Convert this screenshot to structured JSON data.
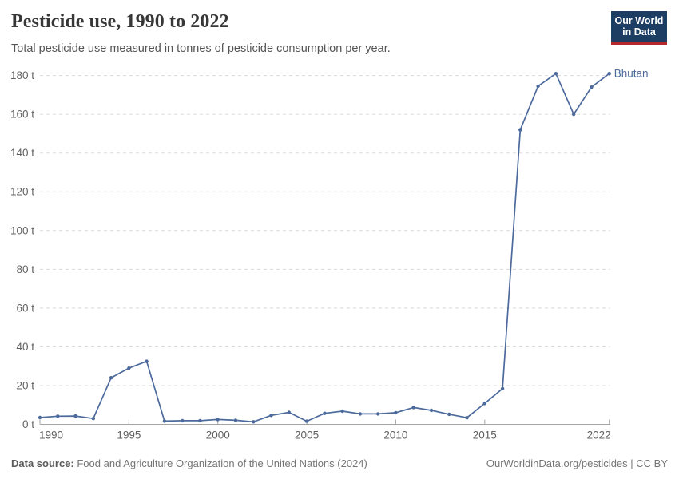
{
  "header": {
    "title": "Pesticide use, 1990 to 2022",
    "subtitle": "Total pesticide use measured in tonnes of pesticide consumption per year."
  },
  "logo": {
    "line1": "Our World",
    "line2": "in Data",
    "bg_color": "#1d3d63",
    "accent_color": "#b4282d"
  },
  "chart_data": {
    "type": "line",
    "title": "Pesticide use, 1990 to 2022",
    "ylabel": "tonnes of pesticide consumption",
    "xlabel": "",
    "grid": "horizontal-dashed",
    "legend_position": "end-of-line-label",
    "xlim": [
      1990,
      2022
    ],
    "ylim": [
      0,
      180
    ],
    "x_ticks": [
      1990,
      1995,
      2000,
      2005,
      2010,
      2015,
      2022
    ],
    "x_tick_labels": [
      "1990",
      "1995",
      "2000",
      "2005",
      "2010",
      "2015",
      "2022"
    ],
    "y_ticks": [
      0,
      20,
      40,
      60,
      80,
      100,
      120,
      140,
      160,
      180
    ],
    "y_tick_labels": [
      "0 t",
      "20 t",
      "40 t",
      "60 t",
      "80 t",
      "100 t",
      "120 t",
      "140 t",
      "160 t",
      "180 t"
    ],
    "series": [
      {
        "name": "Bhutan",
        "color": "#4c6a9c",
        "x": [
          1990,
          1991,
          1992,
          1993,
          1994,
          1995,
          1996,
          1997,
          1998,
          1999,
          2000,
          2001,
          2002,
          2003,
          2004,
          2005,
          2006,
          2007,
          2008,
          2009,
          2010,
          2011,
          2012,
          2013,
          2014,
          2015,
          2016,
          2017,
          2018,
          2019,
          2020,
          2021,
          2022
        ],
        "values": [
          3.5,
          4.2,
          4.3,
          3.0,
          24.0,
          29.0,
          32.5,
          1.7,
          1.9,
          1.9,
          2.5,
          2.1,
          1.3,
          4.6,
          6.2,
          1.6,
          5.7,
          6.8,
          5.4,
          5.4,
          6.0,
          8.7,
          7.2,
          5.2,
          3.4,
          10.8,
          18.4,
          152.0,
          174.5,
          181.0,
          160.0,
          174.0,
          181.0
        ]
      }
    ]
  },
  "footer": {
    "source_label": "Data source:",
    "source_text": " Food and Agriculture Organization of the United Nations (2024)",
    "link_text": "OurWorldinData.org/pesticides | CC BY"
  },
  "colors": {
    "line": "#4c6a9c",
    "grid": "#dadada",
    "axis": "#a5a5a5",
    "tick_text": "#616161"
  }
}
